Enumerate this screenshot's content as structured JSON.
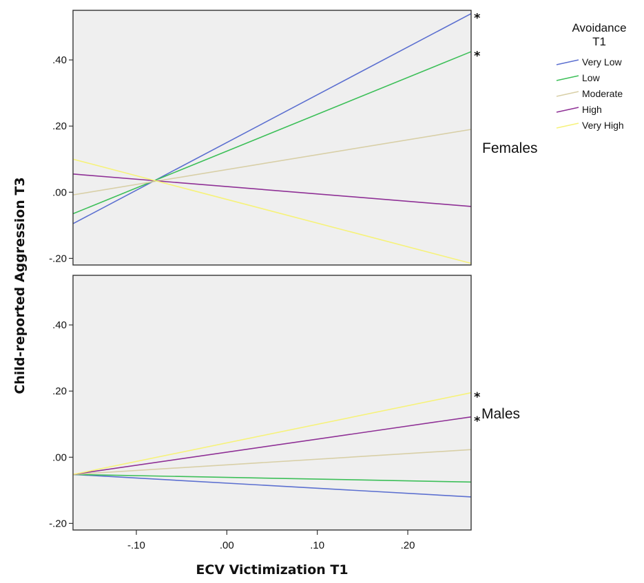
{
  "chart_data": {
    "type": "line",
    "xlabel": "ECV Victimization T1",
    "ylabel": "Child-reported Aggression T3",
    "xlim": [
      -0.17,
      0.27
    ],
    "ylim": [
      -0.22,
      0.55
    ],
    "x_ticks": [
      {
        "value": -0.1,
        "label": "-.10"
      },
      {
        "value": 0.0,
        "label": ".00"
      },
      {
        "value": 0.1,
        "label": ".10"
      },
      {
        "value": 0.2,
        "label": ".20"
      }
    ],
    "y_ticks": [
      {
        "value": -0.2,
        "label": "-.20"
      },
      {
        "value": 0.0,
        "label": ".00"
      },
      {
        "value": 0.2,
        "label": ".20"
      },
      {
        "value": 0.4,
        "label": ".40"
      }
    ],
    "grid": false,
    "legend": {
      "title": "Avoidance T1",
      "placement": "top-right",
      "items": [
        {
          "name": "Very Low",
          "color": "#5b6fd0"
        },
        {
          "name": "Low",
          "color": "#3cbf58"
        },
        {
          "name": "Moderate",
          "color": "#d8cfa6"
        },
        {
          "name": "High",
          "color": "#8e2f95"
        },
        {
          "name": "Very High",
          "color": "#f6f27a"
        }
      ]
    },
    "panels": [
      {
        "label": "Females",
        "series": [
          {
            "name": "Very Low",
            "color": "#5b6fd0",
            "x": [
              -0.17,
              0.27
            ],
            "y": [
              -0.095,
              0.54
            ],
            "significant": true
          },
          {
            "name": "Low",
            "color": "#3cbf58",
            "x": [
              -0.17,
              0.27
            ],
            "y": [
              -0.065,
              0.425
            ],
            "significant": true
          },
          {
            "name": "Moderate",
            "color": "#d8cfa6",
            "x": [
              -0.17,
              0.27
            ],
            "y": [
              -0.008,
              0.19
            ],
            "significant": false
          },
          {
            "name": "High",
            "color": "#8e2f95",
            "x": [
              -0.17,
              0.27
            ],
            "y": [
              0.055,
              -0.043
            ],
            "significant": false
          },
          {
            "name": "Very High",
            "color": "#f6f27a",
            "x": [
              -0.17,
              0.27
            ],
            "y": [
              0.1,
              -0.215
            ],
            "significant": false
          }
        ]
      },
      {
        "label": "Males",
        "series": [
          {
            "name": "Very Low",
            "color": "#5b6fd0",
            "x": [
              -0.17,
              0.27
            ],
            "y": [
              -0.052,
              -0.12
            ],
            "significant": false
          },
          {
            "name": "Low",
            "color": "#3cbf58",
            "x": [
              -0.17,
              0.27
            ],
            "y": [
              -0.052,
              -0.075
            ],
            "significant": false
          },
          {
            "name": "Moderate",
            "color": "#d8cfa6",
            "x": [
              -0.17,
              0.27
            ],
            "y": [
              -0.052,
              0.023
            ],
            "significant": false
          },
          {
            "name": "High",
            "color": "#8e2f95",
            "x": [
              -0.17,
              0.27
            ],
            "y": [
              -0.052,
              0.122
            ],
            "significant": true
          },
          {
            "name": "Very High",
            "color": "#f6f27a",
            "x": [
              -0.17,
              0.27
            ],
            "y": [
              -0.052,
              0.195
            ],
            "significant": true
          }
        ]
      }
    ],
    "significance_marker": "*"
  },
  "colors": {
    "plot_background": "#efefef",
    "frame": "#333333"
  }
}
